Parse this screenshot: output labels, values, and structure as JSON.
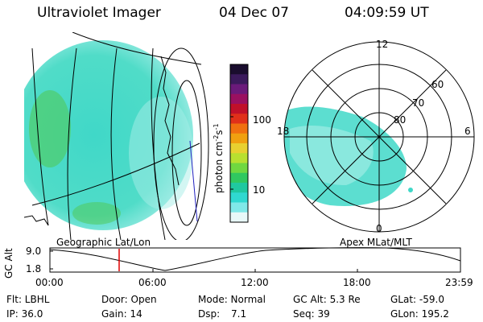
{
  "header": {
    "instrument": "Ultraviolet Imager",
    "date": "04 Dec 07",
    "time": "04:09:59 UT"
  },
  "colorbar": {
    "unit_label": "photon cm",
    "unit_sup1": "-2",
    "unit_mid": "s",
    "unit_sup2": "-1",
    "ticks": [
      "100",
      "10"
    ],
    "colors": [
      "#1a0d2e",
      "#3b1a5c",
      "#6b1a7a",
      "#9a1060",
      "#c0102a",
      "#e0301a",
      "#f07010",
      "#f0a010",
      "#e8d030",
      "#b8e030",
      "#70d840",
      "#30c860",
      "#20c8a0",
      "#30d8d0",
      "#80e8e8",
      "#e8f8f8"
    ]
  },
  "map_labels": {
    "left_projection": "Geographic Lat/Lon",
    "right_projection": "Apex  MLat/MLT"
  },
  "polar": {
    "mlt_labels": [
      "12",
      "18",
      "6",
      "0"
    ],
    "mlat_labels": [
      "60",
      "70",
      "80"
    ]
  },
  "altitude_plot": {
    "ylabel": "GC Alt",
    "ytick_labels": [
      "9.0",
      "1.8"
    ],
    "xtick_labels": [
      "00:00",
      "06:00",
      "12:00",
      "18:00",
      "23:59"
    ]
  },
  "status": {
    "filter": "Flt: LBHL",
    "ip": "IP: 36.0",
    "door": "Door: Open",
    "gain": "Gain: 14",
    "mode": "Mode: Normal",
    "dsp_label": "Dsp:",
    "dsp_value": "7.1",
    "gc_alt": "GC Alt: 5.3 Re",
    "seq": "Seq: 39",
    "glat": "GLat: -59.0",
    "glon": "GLon: 195.2"
  },
  "colors": {
    "aurora_main": "#40d8c8",
    "aurora_light": "#a8eee8",
    "aurora_green": "#50c850",
    "time_marker": "#e00000",
    "field_line": "#2020c0"
  }
}
